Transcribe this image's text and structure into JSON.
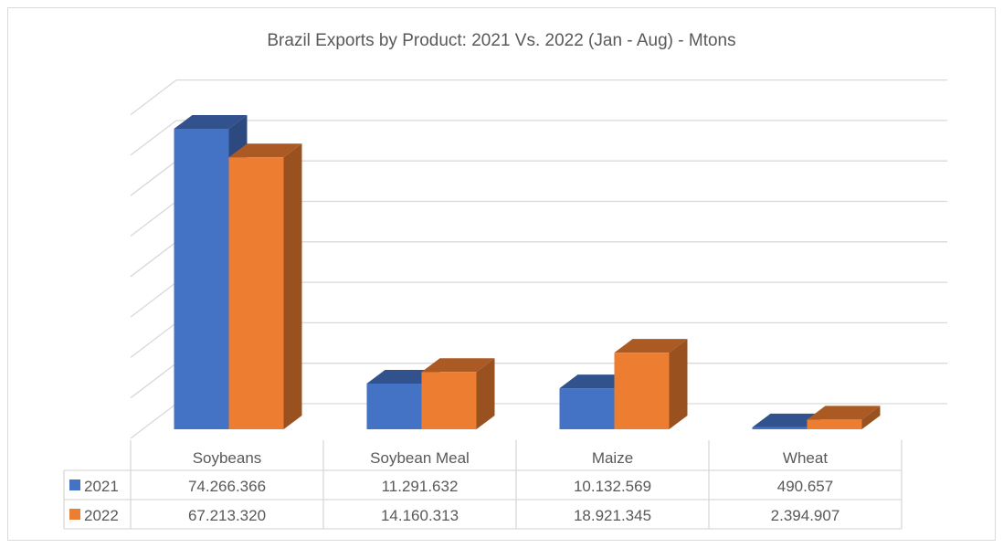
{
  "chart_data": {
    "type": "bar",
    "style": "3d-clustered-column-with-data-table",
    "title": "Brazil Exports by Product: 2021 Vs. 2022 (Jan - Aug) - Mtons",
    "categories": [
      "Soybeans",
      "Soybean Meal",
      "Maize",
      "Wheat"
    ],
    "series": [
      {
        "name": "2021",
        "color": "#4472C4",
        "values": [
          74266366,
          11291632,
          10132569,
          490657
        ],
        "labels": [
          "74.266.366",
          "11.291.632",
          "10.132.569",
          "490.657"
        ]
      },
      {
        "name": "2022",
        "color": "#ED7D31",
        "values": [
          67213320,
          14160313,
          18921345,
          2394907
        ],
        "labels": [
          "67.213.320",
          "14.160.313",
          "18.921.345",
          "2.394.907"
        ]
      }
    ],
    "ylim": [
      0,
      80000000
    ],
    "grid": true,
    "legend": "data-table"
  }
}
